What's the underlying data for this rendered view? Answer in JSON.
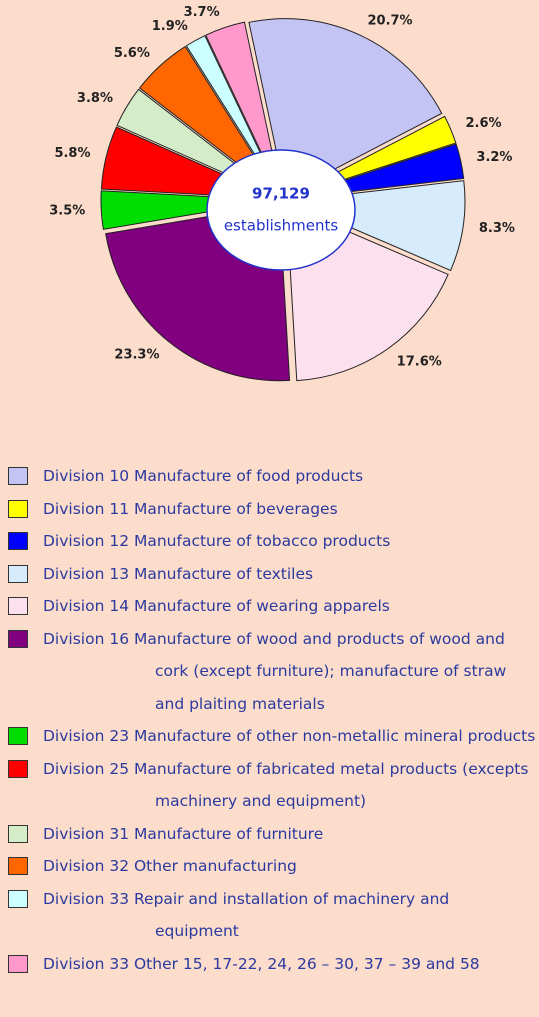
{
  "chart_data": {
    "type": "pie",
    "center_text": [
      "97,129",
      "establishments"
    ],
    "categories": [
      "Division 10 Manufacture of food products",
      "Division 11 Manufacture of beverages",
      "Division 12 Manufacture of tobacco products",
      "Division 13 Manufacture of textiles",
      "Division 14 Manufacture of wearing apparels",
      "Division 16 Manufacture of wood and products of wood and cork (except furniture); manufacture of straw and plaiting materials",
      "Division 23 Manufacture of other non-metallic mineral products",
      "Division 25 Manufacture of fabricated metal products (excepts machinery and equipment)",
      "Division 31 Manufacture of furniture",
      "Division 32 Other manufacturing",
      "Division 33 Repair and installation of machinery and equipment",
      "Division 33 Other 15, 17-22, 24, 26 – 30, 37 – 39 and 58"
    ],
    "values": [
      20.7,
      2.6,
      3.2,
      8.3,
      17.6,
      23.3,
      3.5,
      5.8,
      3.8,
      5.6,
      1.9,
      3.7
    ],
    "value_labels": [
      "20.7%",
      "2.6%",
      "3.2%",
      "8.3%",
      "17.6%",
      "23.3%",
      "3.5%",
      "5.8%",
      "3.8%",
      "5.6%",
      "1.9%",
      "3.7%"
    ],
    "colors": [
      "#c4c4f4",
      "#ffff00",
      "#0000ff",
      "#d6ecfc",
      "#fde0ee",
      "#800080",
      "#00dd00",
      "#ff0000",
      "#d4ecc8",
      "#ff6600",
      "#ccffff",
      "#ff99cc"
    ]
  }
}
